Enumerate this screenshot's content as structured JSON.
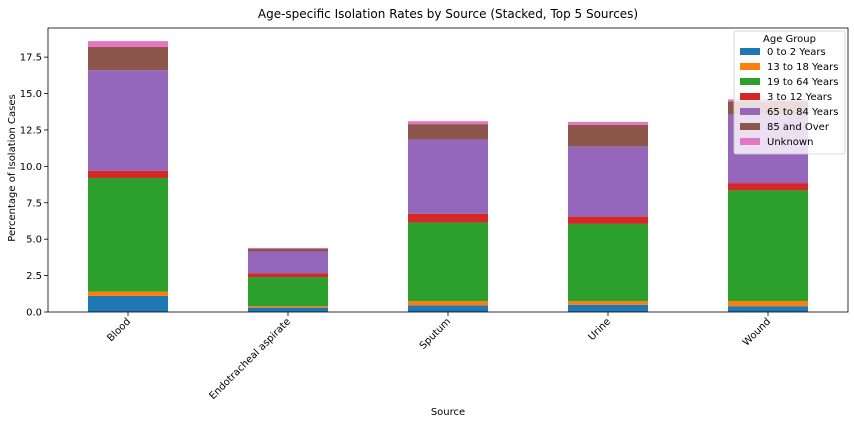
{
  "chart_data": {
    "type": "bar",
    "stacked": true,
    "title": "Age-specific Isolation Rates by Source (Stacked, Top 5 Sources)",
    "xlabel": "Source",
    "ylabel": "Percentage of Isolation Cases",
    "ylim": [
      0,
      19.5
    ],
    "yticks": [
      "0.0",
      "2.5",
      "5.0",
      "7.5",
      "10.0",
      "12.5",
      "15.0",
      "17.5"
    ],
    "categories": [
      "Blood",
      "Endotracheal aspirate",
      "Sputum",
      "Urine",
      "Wound"
    ],
    "legend": {
      "title": "Age Group",
      "placement": "top-right"
    },
    "series": [
      {
        "name": "0 to 2 Years",
        "color": "#1f77b4",
        "values": [
          1.1,
          0.3,
          0.45,
          0.5,
          0.4
        ]
      },
      {
        "name": "13 to 18 Years",
        "color": "#ff7f0e",
        "values": [
          0.3,
          0.1,
          0.3,
          0.25,
          0.35
        ]
      },
      {
        "name": "19 to 64 Years",
        "color": "#2ca02c",
        "values": [
          7.8,
          2.0,
          5.4,
          5.3,
          7.6
        ]
      },
      {
        "name": "3 to 12 Years",
        "color": "#d62728",
        "values": [
          0.5,
          0.25,
          0.6,
          0.5,
          0.5
        ]
      },
      {
        "name": "65 to 84 Years",
        "color": "#9467bd",
        "values": [
          6.9,
          1.5,
          5.1,
          4.8,
          4.7
        ]
      },
      {
        "name": "85 and Over",
        "color": "#8c564b",
        "values": [
          1.6,
          0.2,
          1.05,
          1.5,
          0.9
        ]
      },
      {
        "name": "Unknown",
        "color": "#e377c2",
        "values": [
          0.4,
          0.05,
          0.2,
          0.2,
          0.15
        ]
      }
    ]
  }
}
